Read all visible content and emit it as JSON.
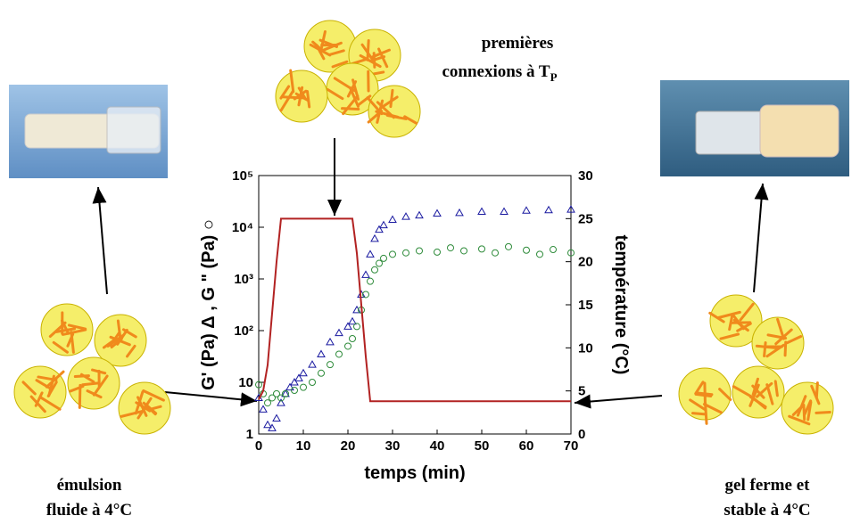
{
  "chart_data": {
    "type": "scatter",
    "xlabel": "temps (min)",
    "ylabel": "G' (Pa) Δ , G \" (Pa) ○",
    "y2label": "température (°C)",
    "xlim": [
      0,
      70
    ],
    "xticks": [
      0,
      10,
      20,
      30,
      40,
      50,
      60,
      70
    ],
    "ylim": [
      1,
      100000
    ],
    "ylog": true,
    "yticks": [
      1,
      10,
      {
        "value": 100,
        "label": "10²"
      },
      {
        "value": 1000,
        "label": "10³"
      },
      {
        "value": 10000,
        "label": "10⁴"
      },
      {
        "value": 100000,
        "label": "10⁵"
      }
    ],
    "y2lim": [
      0,
      30
    ],
    "y2ticks": [
      0,
      5,
      10,
      15,
      20,
      25,
      30
    ],
    "series": [
      {
        "marker": "triangle",
        "color": "#1a1aa0",
        "x": [
          0,
          1,
          2,
          3,
          4,
          5,
          6,
          7,
          8,
          9,
          10,
          12,
          14,
          16,
          18,
          20,
          21,
          22,
          23,
          24,
          25,
          26,
          27,
          28,
          30,
          33,
          36,
          40,
          45,
          50,
          55,
          60,
          65,
          70
        ],
        "values": [
          5,
          3,
          1.5,
          1.3,
          2,
          4,
          6,
          8,
          10,
          12,
          15,
          22,
          35,
          60,
          90,
          120,
          150,
          250,
          500,
          1200,
          3000,
          6000,
          9000,
          11000,
          14000,
          16000,
          17000,
          18500,
          19000,
          20000,
          20000,
          21000,
          21500,
          22000
        ]
      },
      {
        "marker": "circle",
        "color": "#2e8b3a",
        "x": [
          0,
          1,
          2,
          3,
          4,
          5,
          6,
          8,
          10,
          12,
          14,
          16,
          18,
          20,
          21,
          22,
          23,
          24,
          25,
          26,
          27,
          28,
          30,
          33,
          36,
          40,
          43,
          46,
          50,
          53,
          56,
          60,
          63,
          66,
          70
        ],
        "values": [
          9,
          6,
          4,
          5,
          6,
          5,
          6,
          7,
          8,
          10,
          15,
          22,
          35,
          50,
          70,
          120,
          250,
          500,
          900,
          1500,
          2000,
          2500,
          3000,
          3200,
          3500,
          3300,
          4000,
          3500,
          3800,
          3200,
          4200,
          3600,
          3000,
          3700,
          3200
        ]
      },
      {
        "marker": "line",
        "color": "#b22222",
        "axis": "y2",
        "x": [
          0,
          1,
          2,
          3,
          4,
          5,
          20,
          21,
          22,
          23,
          24,
          25,
          70
        ],
        "values": [
          4,
          5,
          8,
          14,
          20,
          25,
          25,
          25,
          21,
          15,
          9,
          3.8,
          3.8
        ]
      }
    ],
    "annotations": {
      "top": [
        "premières",
        "connexions à T"
      ],
      "top_subscript": "P",
      "left": [
        "émulsion",
        "fluide à 4°C"
      ],
      "right": [
        "gel ferme et",
        "stable à 4°C"
      ]
    }
  }
}
